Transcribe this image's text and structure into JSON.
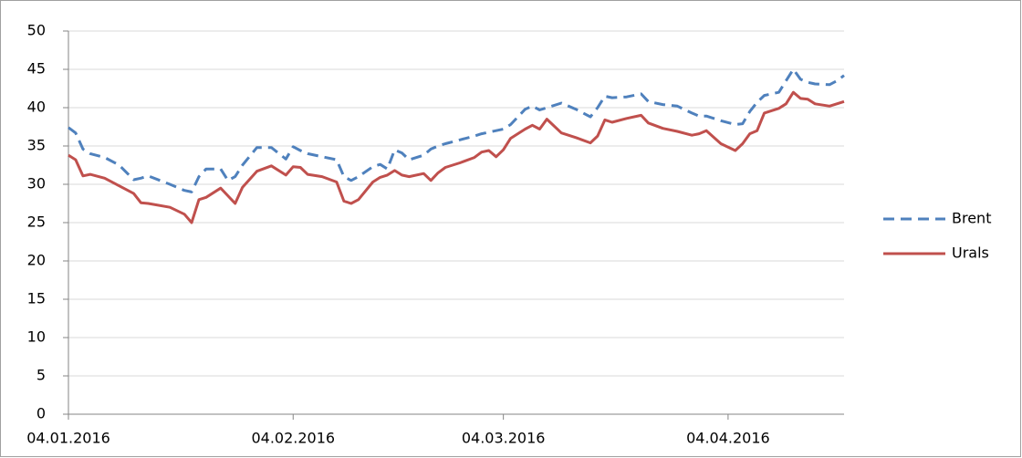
{
  "chart_data": {
    "type": "line",
    "x": [
      "04.01.2016",
      "05.01.2016",
      "06.01.2016",
      "07.01.2016",
      "09.01.2016",
      "11.01.2016",
      "13.01.2016",
      "14.01.2016",
      "15.01.2016",
      "18.01.2016",
      "20.01.2016",
      "21.01.2016",
      "22.01.2016",
      "23.01.2016",
      "25.01.2016",
      "26.01.2016",
      "27.01.2016",
      "28.01.2016",
      "30.01.2016",
      "01.02.2016",
      "03.02.2016",
      "04.02.2016",
      "05.02.2016",
      "06.02.2016",
      "08.02.2016",
      "10.02.2016",
      "11.02.2016",
      "12.02.2016",
      "13.02.2016",
      "15.02.2016",
      "16.02.2016",
      "17.02.2016",
      "18.02.2016",
      "19.02.2016",
      "20.02.2016",
      "22.02.2016",
      "23.02.2016",
      "24.02.2016",
      "25.02.2016",
      "27.02.2016",
      "29.02.2016",
      "01.03.2016",
      "02.03.2016",
      "03.03.2016",
      "04.03.2016",
      "05.03.2016",
      "07.03.2016",
      "08.03.2016",
      "09.03.2016",
      "10.03.2016",
      "12.03.2016",
      "14.03.2016",
      "16.03.2016",
      "17.03.2016",
      "18.03.2016",
      "19.03.2016",
      "21.03.2016",
      "23.03.2016",
      "24.03.2016",
      "26.03.2016",
      "28.03.2016",
      "30.03.2016",
      "31.03.2016",
      "01.04.2016",
      "03.04.2016",
      "05.04.2016",
      "06.04.2016",
      "07.04.2016",
      "08.04.2016",
      "09.04.2016",
      "11.04.2016",
      "12.04.2016",
      "13.04.2016",
      "14.04.2016",
      "15.04.2016",
      "16.04.2016",
      "18.04.2016",
      "19.04.2016",
      "20.04.2016"
    ],
    "series": [
      {
        "name": "Brent",
        "color": "#4f81bd",
        "dash": true,
        "values": [
          37.4,
          36.7,
          34.6,
          34.0,
          33.5,
          32.5,
          30.6,
          30.8,
          31.1,
          30.0,
          29.2,
          29.0,
          31.0,
          32.0,
          32.0,
          30.5,
          31.0,
          32.5,
          34.8,
          34.8,
          33.3,
          34.9,
          34.4,
          34.0,
          33.6,
          33.2,
          31.0,
          30.5,
          31.0,
          32.3,
          32.6,
          32.0,
          34.5,
          34.1,
          33.2,
          33.8,
          34.6,
          35.0,
          35.3,
          35.8,
          36.3,
          36.6,
          36.8,
          37.0,
          37.2,
          37.8,
          39.8,
          40.2,
          39.7,
          40.0,
          40.6,
          39.8,
          38.8,
          40.0,
          41.5,
          41.3,
          41.4,
          41.8,
          40.8,
          40.4,
          40.2,
          39.3,
          38.9,
          38.9,
          38.3,
          37.8,
          37.9,
          39.5,
          40.7,
          41.6,
          42.0,
          43.5,
          45.0,
          43.7,
          43.3,
          43.1,
          43.0,
          43.5,
          44.2
        ]
      },
      {
        "name": "Urals",
        "color": "#c0504d",
        "dash": false,
        "values": [
          33.8,
          33.2,
          31.1,
          31.3,
          30.8,
          29.8,
          28.8,
          27.6,
          27.5,
          27.0,
          26.1,
          25.0,
          28.0,
          28.3,
          29.5,
          28.5,
          27.5,
          29.6,
          31.7,
          32.4,
          31.2,
          32.3,
          32.2,
          31.3,
          31.0,
          30.3,
          27.8,
          27.5,
          28.0,
          30.3,
          30.9,
          31.2,
          31.8,
          31.2,
          31.0,
          31.4,
          30.5,
          31.5,
          32.2,
          32.8,
          33.5,
          34.2,
          34.4,
          33.6,
          34.5,
          36.0,
          37.2,
          37.7,
          37.2,
          38.5,
          36.7,
          36.1,
          35.4,
          36.3,
          38.4,
          38.1,
          38.6,
          39.0,
          38.0,
          37.3,
          36.9,
          36.4,
          36.6,
          37.0,
          35.3,
          34.4,
          35.3,
          36.6,
          37.0,
          39.3,
          39.9,
          40.5,
          42.0,
          41.2,
          41.1,
          40.5,
          40.2,
          40.5,
          40.8
        ]
      }
    ],
    "xlim": [
      "04.01.2016",
      "20.04.2016"
    ],
    "xticks": [
      "04.01.2016",
      "04.02.2016",
      "04.03.2016",
      "04.04.2016"
    ],
    "ylim": [
      0,
      50
    ],
    "yticks": [
      0,
      5,
      10,
      15,
      20,
      25,
      30,
      35,
      40,
      45,
      50
    ],
    "grid": true,
    "legend": "right"
  }
}
